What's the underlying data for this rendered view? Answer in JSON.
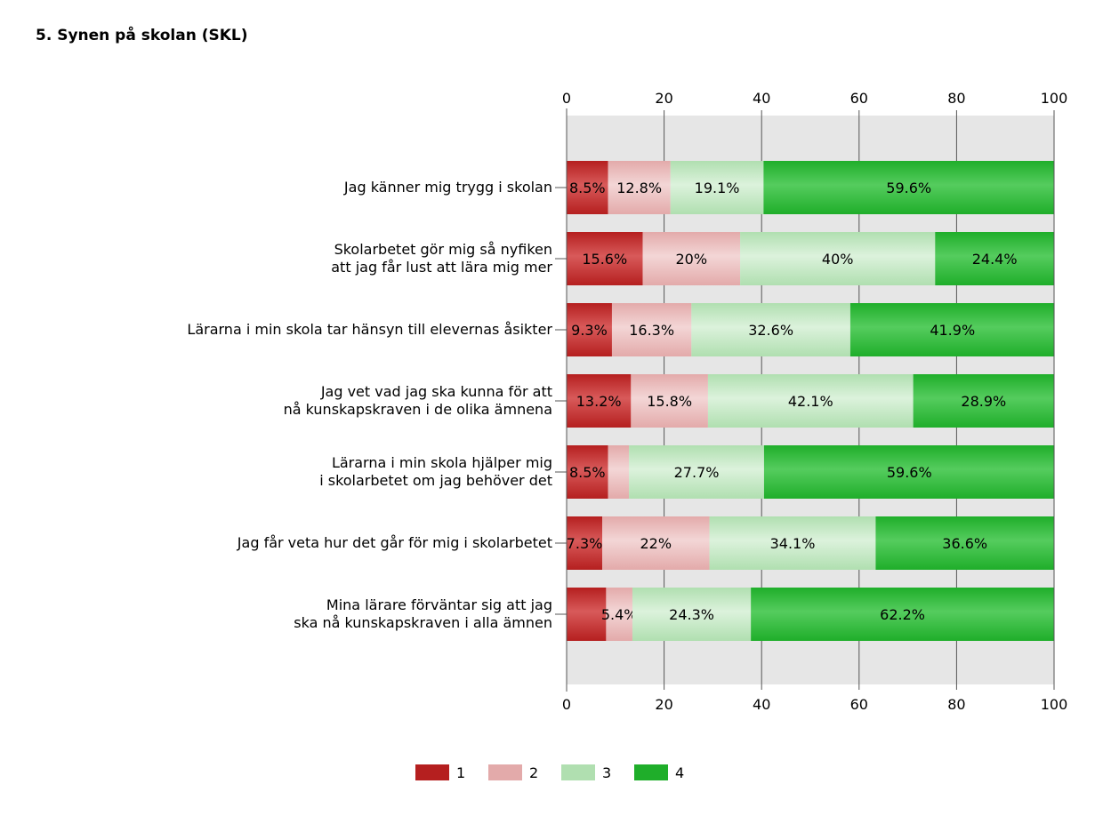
{
  "page": {
    "title": "5. Synen på skolan (SKL)"
  },
  "chart_data": {
    "type": "bar",
    "orientation": "horizontal",
    "stacked": true,
    "title": "5. Synen på skolan (SKL)",
    "xlim": [
      0,
      100
    ],
    "xticks": [
      "0",
      "20",
      "40",
      "60",
      "80",
      "100"
    ],
    "grid": true,
    "legend_placement": "bottom",
    "categories": [
      [
        "Jag känner mig trygg i skolan"
      ],
      [
        "Skolarbetet gör mig så nyfiken",
        "att jag får lust att lära mig mer"
      ],
      [
        "Lärarna i min skola tar hänsyn till elevernas åsikter"
      ],
      [
        "Jag vet vad jag ska kunna för att",
        "nå kunskapskraven i de olika ämnena"
      ],
      [
        "Lärarna i min skola hjälper mig",
        "i skolarbetet om jag behöver det"
      ],
      [
        "Jag får veta hur det går för mig i skolarbetet"
      ],
      [
        "Mina lärare förväntar sig att jag",
        "ska nå kunskapskraven i alla ämnen"
      ]
    ],
    "series": [
      {
        "name": "1",
        "color": "#b51f1f",
        "light": "#d85a5a",
        "values": [
          8.5,
          15.6,
          9.3,
          13.2,
          8.5,
          7.3,
          8.1
        ],
        "labels": [
          "8.5%",
          "15.6%",
          "9.3%",
          "13.2%",
          "8.5%",
          "7.3%",
          ""
        ]
      },
      {
        "name": "2",
        "color": "#e3aaaa",
        "light": "#f3d6d6",
        "values": [
          12.8,
          20,
          16.3,
          15.8,
          4.3,
          22,
          5.4
        ],
        "labels": [
          "12.8%",
          "20%",
          "16.3%",
          "15.8%",
          "",
          "22%",
          "5.4%"
        ]
      },
      {
        "name": "3",
        "color": "#b0dfb0",
        "light": "#dcf2dc",
        "values": [
          19.1,
          40,
          32.6,
          42.1,
          27.7,
          34.1,
          24.3
        ],
        "labels": [
          "19.1%",
          "40%",
          "32.6%",
          "42.1%",
          "27.7%",
          "34.1%",
          "24.3%"
        ]
      },
      {
        "name": "4",
        "color": "#1fae2a",
        "light": "#55cc5e",
        "values": [
          59.6,
          24.4,
          41.9,
          28.9,
          59.6,
          36.6,
          62.2
        ],
        "labels": [
          "59.6%",
          "24.4%",
          "41.9%",
          "28.9%",
          "59.6%",
          "36.6%",
          "62.2%"
        ]
      }
    ]
  }
}
